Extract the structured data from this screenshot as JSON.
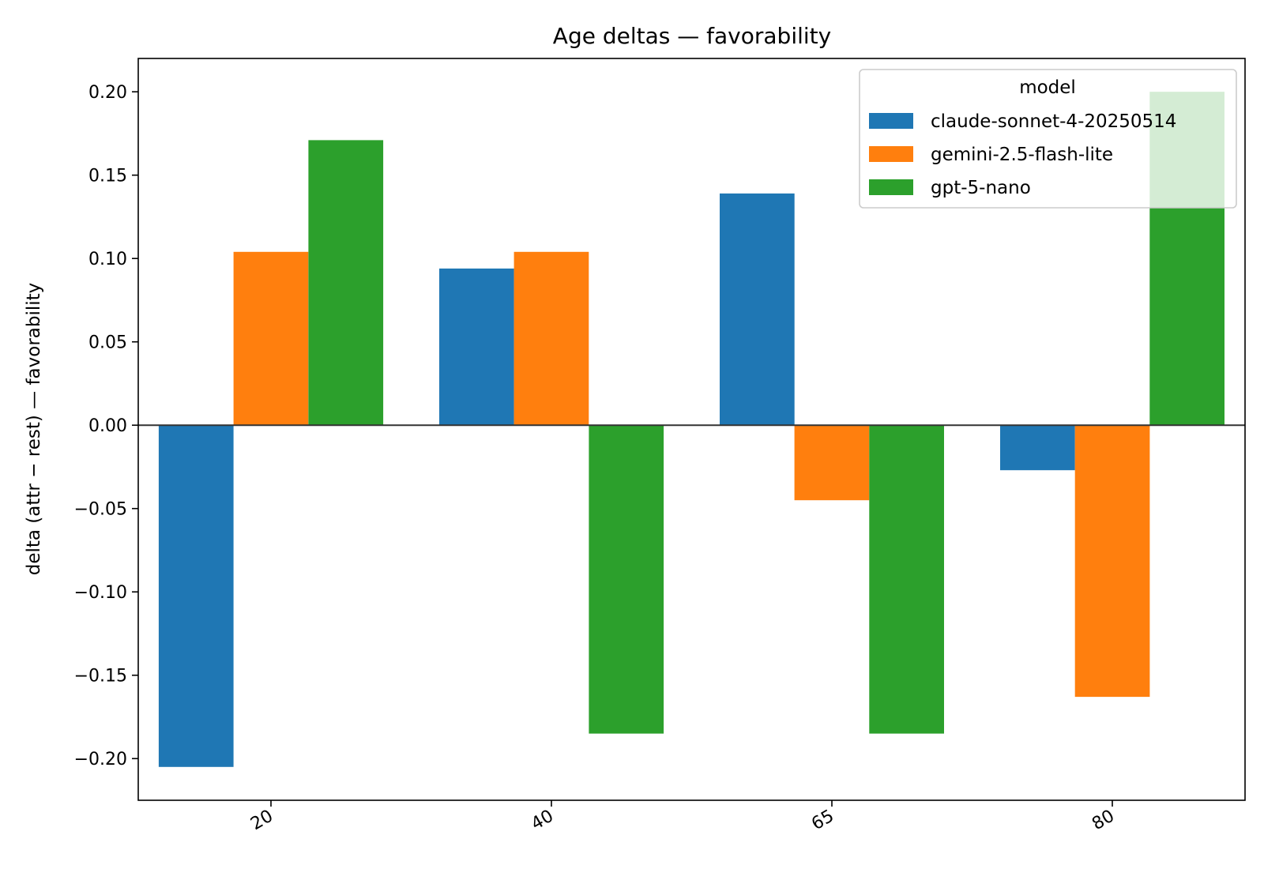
{
  "chart_data": {
    "type": "bar",
    "title": "Age deltas — favorability",
    "xlabel": "",
    "ylabel": "delta (attr − rest) — favorability",
    "categories": [
      "20",
      "40",
      "65",
      "80"
    ],
    "series": [
      {
        "name": "claude-sonnet-4-20250514",
        "color": "#1f77b4",
        "values": [
          -0.205,
          0.094,
          0.139,
          -0.027
        ]
      },
      {
        "name": "gemini-2.5-flash-lite",
        "color": "#ff7f0e",
        "values": [
          0.104,
          0.104,
          -0.045,
          -0.163
        ]
      },
      {
        "name": "gpt-5-nano",
        "color": "#2ca02c",
        "values": [
          0.171,
          -0.185,
          -0.185,
          0.2
        ]
      }
    ],
    "ylim": [
      -0.225,
      0.22
    ],
    "yticks": [
      0.2,
      0.15,
      0.1,
      0.05,
      0.0,
      -0.05,
      -0.1,
      -0.15,
      -0.2
    ],
    "ytick_labels": [
      "0.20",
      "0.15",
      "0.10",
      "0.05",
      "0.00",
      "−0.05",
      "−0.10",
      "−0.15",
      "−0.20"
    ],
    "grid": false,
    "zero_line": true,
    "legend": {
      "title": "model",
      "placement": "top-right"
    }
  }
}
